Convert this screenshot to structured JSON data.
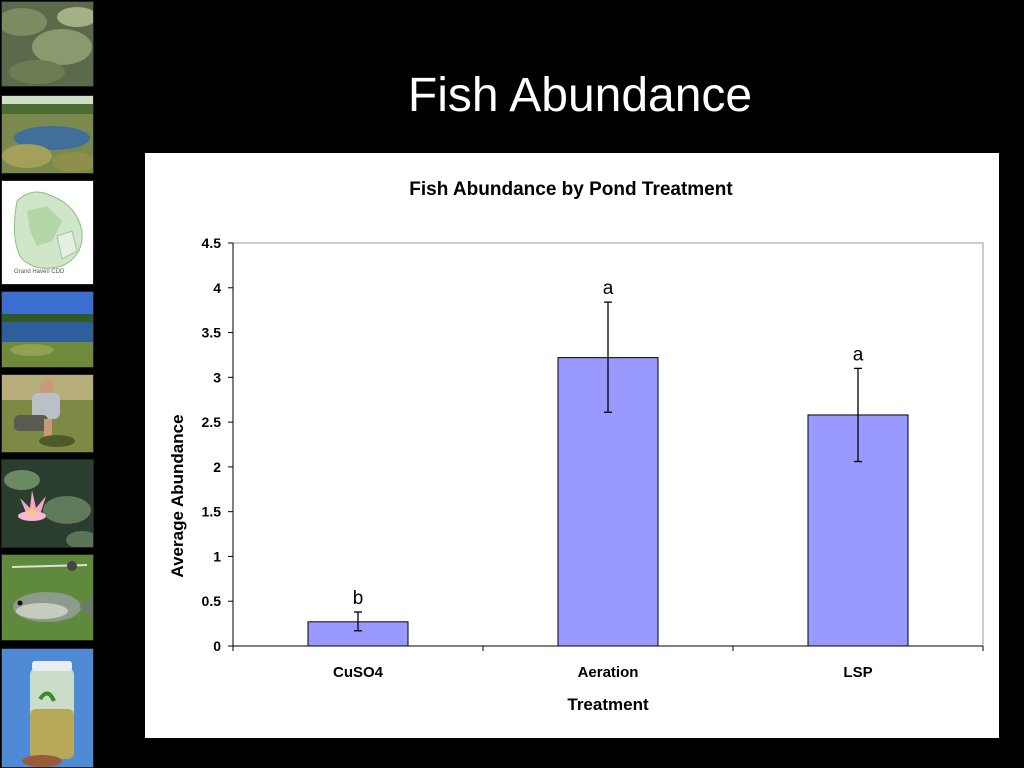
{
  "slide": {
    "title": "Fish Abundance"
  },
  "sidebar": {
    "photos": [
      {
        "name": "algae-pond-photo"
      },
      {
        "name": "vegetated-pond-photo"
      },
      {
        "name": "site-map-photo",
        "caption": "Grand Haven CDD"
      },
      {
        "name": "pond-landscape-photo"
      },
      {
        "name": "field-worker-photo"
      },
      {
        "name": "water-lily-photo"
      },
      {
        "name": "fish-catch-photo"
      },
      {
        "name": "water-sample-jar-photo"
      }
    ]
  },
  "chart_data": {
    "type": "bar",
    "title": "Fish Abundance by Pond Treatment",
    "xlabel": "Treatment",
    "ylabel": "Average Abundance",
    "categories": [
      "CuSO4",
      "Aeration",
      "LSP"
    ],
    "values": [
      0.27,
      3.22,
      2.58
    ],
    "error_low": [
      0.17,
      2.61,
      2.06
    ],
    "error_high": [
      0.38,
      3.84,
      3.1
    ],
    "significance_labels": [
      "b",
      "a",
      "a"
    ],
    "ylim": [
      0,
      4.5
    ],
    "yticks": [
      "0",
      "0.5",
      "1",
      "1.5",
      "2",
      "2.5",
      "3",
      "3.5",
      "4",
      "4.5"
    ],
    "bar_color": "#9999FF",
    "grid": false,
    "legend": false
  }
}
